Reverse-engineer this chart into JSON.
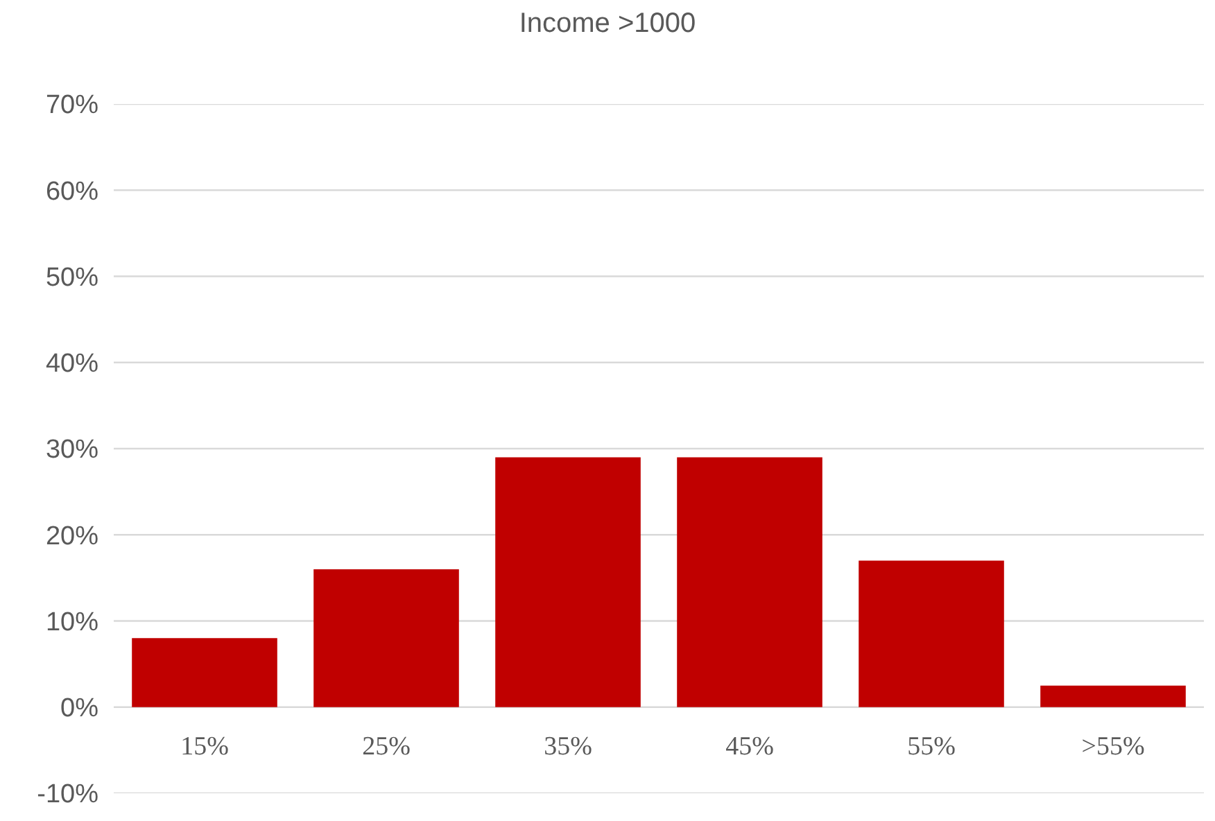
{
  "chart_data": {
    "type": "bar",
    "title": "Income >1000",
    "categories": [
      "15%",
      "25%",
      "35%",
      "45%",
      "55%",
      ">55%"
    ],
    "values": [
      8,
      16,
      29,
      29,
      17,
      2.5
    ],
    "color": "#c00000",
    "ylim": [
      -10,
      70
    ],
    "yticks": [
      {
        "value": -10,
        "label": "-10%"
      },
      {
        "value": 0,
        "label": "0%"
      },
      {
        "value": 10,
        "label": "10%"
      },
      {
        "value": 20,
        "label": "20%"
      },
      {
        "value": 30,
        "label": "30%"
      },
      {
        "value": 40,
        "label": "40%"
      },
      {
        "value": 50,
        "label": "50%"
      },
      {
        "value": 60,
        "label": "60%"
      },
      {
        "value": 70,
        "label": "70%"
      }
    ],
    "grid": "y"
  }
}
